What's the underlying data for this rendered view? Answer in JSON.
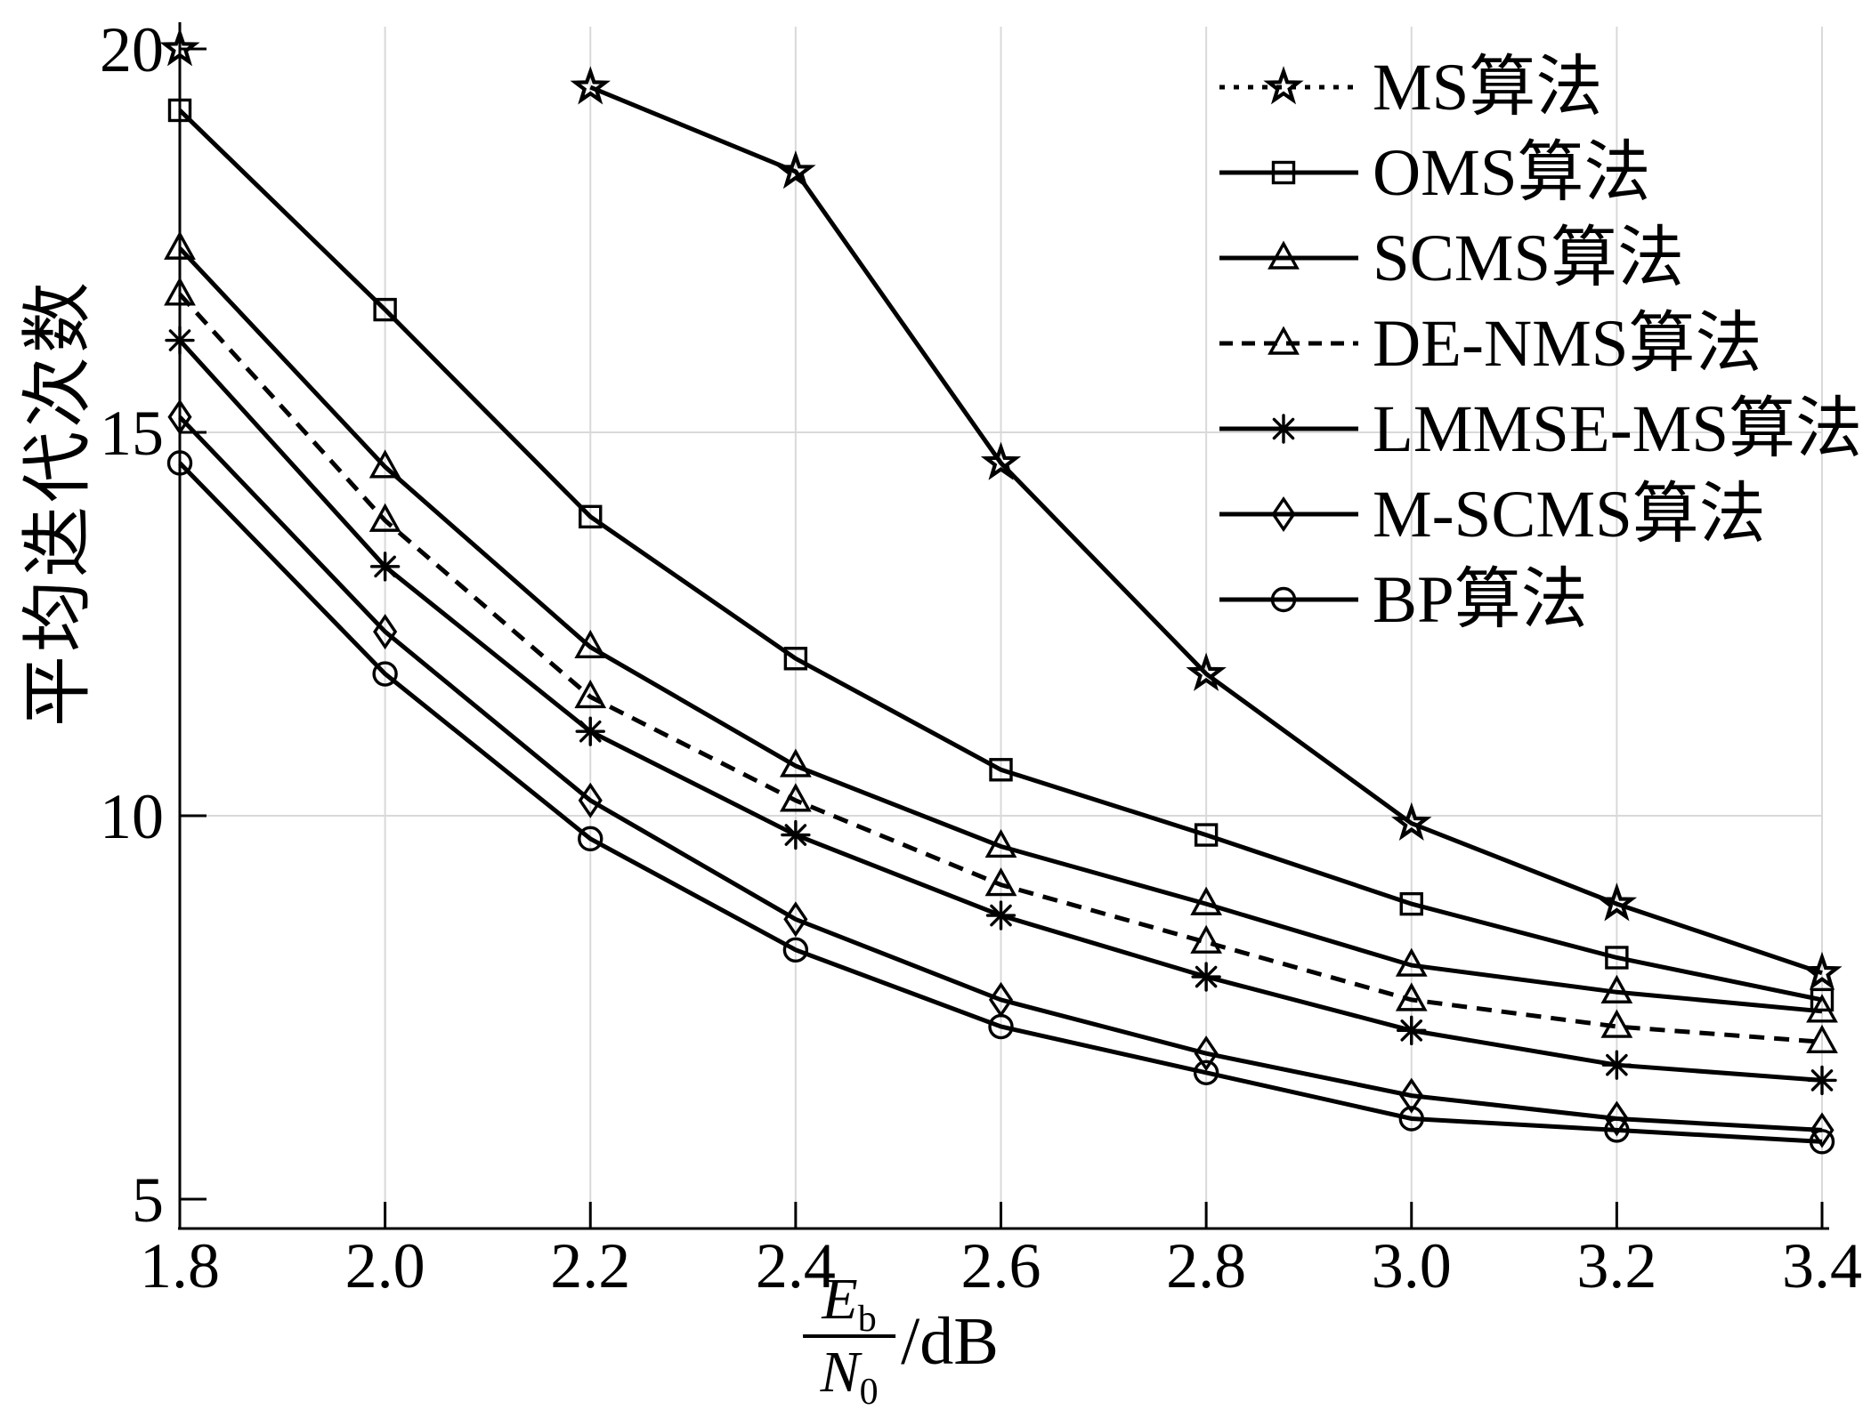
{
  "figure": {
    "background": "#ffffff",
    "ink_color": "#000000",
    "grid_color": "#d9d9d9"
  },
  "chart_data": {
    "type": "line",
    "title": "",
    "ylabel": "平均迭代次数",
    "xlabel": {
      "numerator": "E",
      "numerator_sub": "b",
      "denominator": "N",
      "denominator_sub": "0",
      "unit": "/dB"
    },
    "xlim": [
      1.8,
      3.4
    ],
    "ylim": [
      4.6,
      20.4
    ],
    "x": [
      1.8,
      2.0,
      2.2,
      2.4,
      2.6,
      2.8,
      3.0,
      3.2,
      3.4
    ],
    "x_tick_labels": [
      "1.8",
      "2.0",
      "2.2",
      "2.4",
      "2.6",
      "2.8",
      "3.0",
      "3.2",
      "3.4"
    ],
    "y_ticks": [
      5,
      10,
      15,
      20
    ],
    "y_tick_labels": [
      "5",
      "10",
      "15",
      "20"
    ],
    "grid": {
      "vertical_at": [
        2.0,
        2.2,
        2.4,
        2.6,
        2.8,
        3.0,
        3.2,
        3.4
      ],
      "horizontal_at": [
        10,
        15
      ]
    },
    "legend_position": "top-right",
    "series": [
      {
        "name": "MS算法",
        "marker": "star",
        "line": "solid",
        "legend_line": "dotted",
        "values": [
          20.0,
          null,
          19.5,
          18.4,
          14.6,
          11.85,
          9.9,
          8.85,
          7.95
        ]
      },
      {
        "name": "OMS算法",
        "marker": "square",
        "line": "solid",
        "legend_line": "solid",
        "values": [
          19.2,
          16.6,
          13.9,
          12.05,
          10.6,
          9.75,
          8.85,
          8.15,
          7.6
        ]
      },
      {
        "name": "SCMS算法",
        "marker": "triangle",
        "line": "solid",
        "legend_line": "solid",
        "values": [
          17.4,
          14.55,
          12.2,
          10.65,
          9.6,
          8.85,
          8.05,
          7.7,
          7.45
        ]
      },
      {
        "name": "DE-NMS算法",
        "marker": "triangle",
        "line": "dashed",
        "legend_line": "dashed",
        "values": [
          16.8,
          13.85,
          11.55,
          10.2,
          9.1,
          8.35,
          7.6,
          7.25,
          7.05
        ]
      },
      {
        "name": "LMMSE-MS算法",
        "marker": "asterisk",
        "line": "solid",
        "legend_line": "solid",
        "values": [
          16.2,
          13.25,
          11.1,
          9.75,
          8.7,
          7.9,
          7.2,
          6.75,
          6.55
        ]
      },
      {
        "name": "M-SCMS算法",
        "marker": "diamond",
        "line": "solid",
        "legend_line": "solid",
        "values": [
          15.2,
          12.4,
          10.2,
          8.65,
          7.6,
          6.9,
          6.35,
          6.05,
          5.9
        ]
      },
      {
        "name": "BP算法",
        "marker": "circle",
        "line": "solid",
        "legend_line": "solid",
        "values": [
          14.6,
          11.85,
          9.7,
          8.25,
          7.25,
          6.65,
          6.05,
          5.9,
          5.75
        ]
      }
    ]
  }
}
